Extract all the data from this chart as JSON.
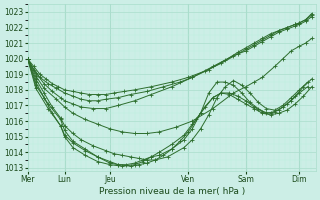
{
  "xlabel": "Pression niveau de la mer( hPa )",
  "bg_color": "#cceee6",
  "grid_color_major": "#aaddcc",
  "grid_color_minor": "#bbeedf",
  "line_color": "#2d6e2d",
  "ylim": [
    1012.8,
    1023.5
  ],
  "yticks": [
    1013,
    1014,
    1015,
    1016,
    1017,
    1018,
    1019,
    1020,
    1021,
    1022,
    1023
  ],
  "day_labels": [
    "Mer",
    "Lun",
    "Jeu",
    "Ven",
    "Sam",
    "Dim"
  ],
  "day_x": [
    0.0,
    0.9,
    2.0,
    3.9,
    5.3,
    6.6
  ],
  "xlim": [
    0,
    7.0
  ],
  "series": [
    {
      "x": [
        0.0,
        0.15,
        0.3,
        0.45,
        0.6,
        0.75,
        0.9,
        1.1,
        1.3,
        1.5,
        1.7,
        1.9,
        2.1,
        2.35,
        2.6,
        3.0,
        3.5,
        3.9,
        4.3,
        4.7,
        5.1,
        5.3,
        5.5,
        5.7,
        5.9,
        6.1,
        6.3,
        6.5,
        6.6,
        6.75,
        6.9
      ],
      "y": [
        1020.0,
        1019.5,
        1019.0,
        1018.7,
        1018.4,
        1018.2,
        1018.0,
        1017.9,
        1017.8,
        1017.7,
        1017.7,
        1017.7,
        1017.8,
        1017.9,
        1018.0,
        1018.2,
        1018.5,
        1018.8,
        1019.2,
        1019.7,
        1020.3,
        1020.6,
        1020.9,
        1021.2,
        1021.5,
        1021.8,
        1022.0,
        1022.2,
        1022.3,
        1022.5,
        1022.8
      ]
    },
    {
      "x": [
        0.0,
        0.15,
        0.3,
        0.5,
        0.7,
        0.9,
        1.1,
        1.3,
        1.5,
        1.7,
        1.9,
        2.2,
        2.5,
        2.9,
        3.3,
        3.7,
        4.0,
        4.4,
        4.8,
        5.1,
        5.3,
        5.5,
        5.7,
        5.9,
        6.1,
        6.3,
        6.5,
        6.6,
        6.75,
        6.9
      ],
      "y": [
        1020.0,
        1019.3,
        1018.8,
        1018.4,
        1018.1,
        1017.8,
        1017.6,
        1017.4,
        1017.3,
        1017.3,
        1017.4,
        1017.5,
        1017.7,
        1017.9,
        1018.2,
        1018.5,
        1018.8,
        1019.3,
        1019.9,
        1020.4,
        1020.7,
        1021.0,
        1021.3,
        1021.6,
        1021.8,
        1022.0,
        1022.2,
        1022.3,
        1022.5,
        1022.9
      ]
    },
    {
      "x": [
        0.0,
        0.2,
        0.4,
        0.6,
        0.8,
        0.9,
        1.1,
        1.3,
        1.6,
        1.9,
        2.2,
        2.6,
        3.0,
        3.5,
        4.0,
        4.5,
        5.0,
        5.3,
        5.5,
        5.7,
        5.9,
        6.1,
        6.3,
        6.5,
        6.6,
        6.75,
        6.9
      ],
      "y": [
        1020.0,
        1019.1,
        1018.4,
        1017.9,
        1017.5,
        1017.3,
        1017.1,
        1016.9,
        1016.8,
        1016.8,
        1017.0,
        1017.3,
        1017.7,
        1018.2,
        1018.8,
        1019.5,
        1020.2,
        1020.5,
        1020.8,
        1021.1,
        1021.4,
        1021.7,
        1021.9,
        1022.1,
        1022.2,
        1022.4,
        1022.7
      ]
    },
    {
      "x": [
        0.0,
        0.2,
        0.4,
        0.7,
        0.9,
        1.1,
        1.4,
        1.7,
        2.0,
        2.3,
        2.6,
        2.9,
        3.2,
        3.6,
        4.0,
        4.5,
        5.0,
        5.3,
        5.5,
        5.7,
        6.0,
        6.2,
        6.4,
        6.6,
        6.75,
        6.9
      ],
      "y": [
        1020.0,
        1018.9,
        1018.1,
        1017.4,
        1016.9,
        1016.5,
        1016.1,
        1015.8,
        1015.5,
        1015.3,
        1015.2,
        1015.2,
        1015.3,
        1015.6,
        1016.0,
        1016.8,
        1017.8,
        1018.2,
        1018.5,
        1018.8,
        1019.5,
        1020.0,
        1020.5,
        1020.8,
        1021.0,
        1021.3
      ]
    },
    {
      "x": [
        0.0,
        0.2,
        0.4,
        0.6,
        0.8,
        0.9,
        1.1,
        1.3,
        1.6,
        1.9,
        2.1,
        2.3,
        2.5,
        2.7,
        2.9,
        3.1,
        3.4,
        3.8,
        4.0,
        4.2,
        4.4,
        4.6,
        4.8,
        5.0,
        5.2,
        5.4,
        5.6,
        5.8,
        6.0,
        6.2,
        6.4,
        6.6,
        6.8
      ],
      "y": [
        1020.0,
        1018.7,
        1017.8,
        1016.9,
        1016.2,
        1015.7,
        1015.2,
        1014.8,
        1014.4,
        1014.1,
        1013.9,
        1013.8,
        1013.7,
        1013.6,
        1013.5,
        1013.5,
        1013.7,
        1014.3,
        1014.8,
        1015.5,
        1016.4,
        1017.5,
        1018.2,
        1018.6,
        1018.3,
        1017.8,
        1017.2,
        1016.8,
        1016.7,
        1017.0,
        1017.5,
        1018.0,
        1018.5
      ]
    },
    {
      "x": [
        0.0,
        0.2,
        0.4,
        0.6,
        0.8,
        0.9,
        1.1,
        1.4,
        1.7,
        2.0,
        2.2,
        2.4,
        2.6,
        2.8,
        3.0,
        3.2,
        3.5,
        3.8,
        4.0,
        4.2,
        4.4,
        4.6,
        4.8,
        5.0,
        5.2,
        5.4,
        5.6,
        5.8,
        6.0,
        6.2,
        6.4,
        6.6,
        6.8
      ],
      "y": [
        1020.0,
        1018.5,
        1017.5,
        1016.5,
        1015.7,
        1015.1,
        1014.6,
        1014.1,
        1013.7,
        1013.4,
        1013.2,
        1013.2,
        1013.3,
        1013.5,
        1013.7,
        1013.8,
        1014.2,
        1014.8,
        1015.5,
        1016.5,
        1017.8,
        1018.5,
        1018.5,
        1018.3,
        1017.8,
        1017.2,
        1016.8,
        1016.5,
        1016.6,
        1016.9,
        1017.3,
        1017.8,
        1018.2
      ]
    },
    {
      "x": [
        0.0,
        0.2,
        0.5,
        0.8,
        0.9,
        1.1,
        1.4,
        1.7,
        2.0,
        2.2,
        2.5,
        2.7,
        2.9,
        3.1,
        3.3,
        3.5,
        3.7,
        3.9,
        4.1,
        4.3,
        4.5,
        4.7,
        4.9,
        5.1,
        5.3,
        5.5,
        5.7,
        5.9,
        6.1,
        6.3,
        6.5,
        6.7,
        6.9
      ],
      "y": [
        1020.0,
        1018.3,
        1017.1,
        1016.1,
        1015.4,
        1014.7,
        1014.2,
        1013.7,
        1013.3,
        1013.2,
        1013.1,
        1013.2,
        1013.3,
        1013.5,
        1013.8,
        1014.2,
        1014.7,
        1015.3,
        1016.1,
        1016.9,
        1017.5,
        1017.8,
        1017.8,
        1017.6,
        1017.3,
        1016.9,
        1016.6,
        1016.5,
        1016.7,
        1017.1,
        1017.6,
        1018.2,
        1018.7
      ]
    },
    {
      "x": [
        0.0,
        0.2,
        0.5,
        0.8,
        0.9,
        1.1,
        1.4,
        1.7,
        2.0,
        2.3,
        2.6,
        2.8,
        3.0,
        3.2,
        3.5,
        3.8,
        4.0,
        4.2,
        4.5,
        4.7,
        4.9,
        5.1,
        5.3,
        5.5,
        5.7,
        5.9,
        6.1,
        6.3,
        6.5,
        6.7,
        6.9
      ],
      "y": [
        1020.0,
        1018.1,
        1016.8,
        1015.7,
        1015.0,
        1014.3,
        1013.8,
        1013.4,
        1013.2,
        1013.1,
        1013.2,
        1013.4,
        1013.7,
        1014.0,
        1014.5,
        1015.1,
        1015.8,
        1016.5,
        1017.5,
        1017.8,
        1017.7,
        1017.4,
        1017.1,
        1016.8,
        1016.5,
        1016.4,
        1016.5,
        1016.7,
        1017.1,
        1017.6,
        1018.2
      ]
    }
  ]
}
